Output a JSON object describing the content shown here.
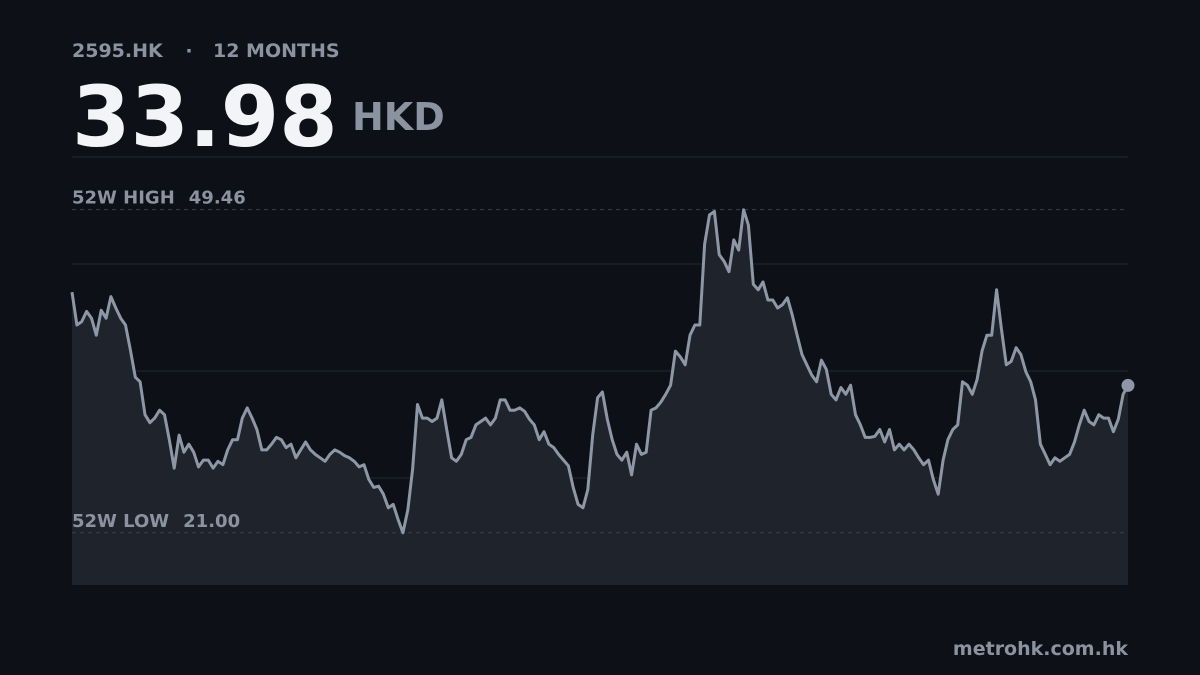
{
  "chart_data": {
    "type": "line",
    "ticker": "2595.HK",
    "separator": "·",
    "period": "12 MONTHS",
    "price": "33.98",
    "currency": "HKD",
    "source": "metrohk.com.hk",
    "color": "#8e97a6",
    "ylim": [
      16.4,
      54.1
    ],
    "grid": true,
    "reference_lines": [
      {
        "label": "52W HIGH",
        "value": 49.46,
        "value_label": "49.46"
      },
      {
        "label": "52W LOW",
        "value": 21,
        "value_label": "21.00"
      }
    ],
    "values": [
      42.2,
      39.3,
      39.6,
      40.5,
      39.9,
      38.4,
      40.6,
      39.9,
      41.8,
      40.8,
      39.9,
      39.3,
      37.1,
      34.7,
      34.3,
      31.4,
      30.7,
      31.1,
      31.8,
      31.4,
      29.2,
      26.7,
      29.6,
      28.1,
      28.8,
      28.1,
      26.8,
      27.4,
      27.4,
      26.7,
      27.3,
      27.0,
      28.3,
      29.2,
      29.2,
      31.1,
      32.0,
      31.1,
      30.1,
      28.3,
      28.3,
      28.8,
      29.4,
      29.2,
      28.5,
      28.8,
      27.6,
      28.3,
      29.0,
      28.3,
      27.9,
      27.6,
      27.3,
      27.9,
      28.3,
      28.1,
      27.8,
      27.6,
      27.3,
      26.8,
      27.0,
      25.7,
      25.0,
      25.1,
      24.4,
      23.2,
      23.5,
      22.2,
      21.0,
      23.0,
      26.6,
      32.3,
      31.1,
      31.1,
      30.8,
      31.1,
      32.7,
      30.1,
      27.6,
      27.3,
      27.9,
      29.2,
      29.4,
      30.5,
      30.8,
      31.1,
      30.5,
      31.1,
      32.7,
      32.7,
      31.8,
      31.8,
      32.0,
      31.7,
      31.0,
      30.5,
      29.2,
      29.9,
      28.8,
      28.5,
      27.9,
      27.4,
      26.9,
      25.0,
      23.5,
      23.2,
      24.8,
      29.6,
      32.9,
      33.4,
      31.0,
      29.2,
      27.9,
      27.4,
      28.1,
      26.1,
      28.8,
      27.9,
      28.1,
      31.8,
      32.0,
      32.5,
      33.2,
      34.0,
      37.0,
      36.5,
      35.8,
      38.4,
      39.3,
      39.3,
      46.4,
      49.0,
      49.3,
      45.5,
      44.9,
      44.0,
      46.8,
      45.9,
      49.46,
      48.1,
      42.9,
      42.4,
      43.1,
      41.5,
      41.5,
      40.8,
      41.1,
      41.7,
      40.2,
      38.4,
      36.7,
      35.8,
      34.9,
      34.3,
      36.2,
      35.4,
      33.2,
      32.7,
      33.8,
      33.2,
      34.0,
      31.4,
      30.5,
      29.4,
      29.4,
      29.5,
      30.1,
      29.0,
      30.1,
      28.3,
      28.8,
      28.3,
      28.8,
      28.3,
      27.6,
      27.0,
      27.4,
      25.7,
      24.4,
      27.4,
      29.2,
      30.1,
      30.5,
      34.3,
      34.0,
      33.2,
      34.5,
      37.0,
      38.4,
      38.4,
      42.4,
      38.9,
      35.8,
      36.1,
      37.3,
      36.7,
      35.2,
      34.3,
      32.7,
      28.8,
      27.9,
      27.0,
      27.6,
      27.3,
      27.6,
      27.9,
      29.0,
      30.5,
      31.8,
      30.8,
      30.5,
      31.4,
      31.1,
      31.1,
      29.9,
      31.0,
      33.2,
      33.98
    ]
  }
}
